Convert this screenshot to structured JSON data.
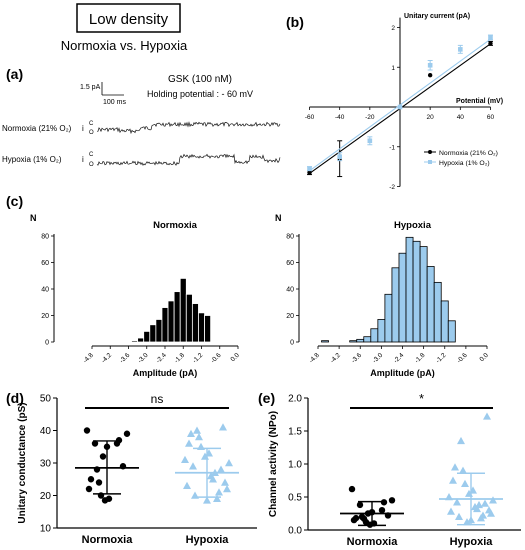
{
  "header": {
    "density_label": "Low density",
    "comparison_title": "Normoxia vs. Hypoxia"
  },
  "colors": {
    "normoxia": "#000000",
    "hypoxia": "#9ccbed",
    "hypoxia_dark": "#6aa8d8"
  },
  "panels": {
    "a": {
      "letter": "(a)",
      "scale_current": "1.5 pA",
      "scale_time": "100 ms",
      "drug_label": "GSK (100 nM)",
      "holding_label": "Holding potential : -  60 mV",
      "traces": [
        {
          "name": "Normoxia (21% O₂)",
          "i_label": "i",
          "closed_label": "C",
          "open_label": "O"
        },
        {
          "name": "Hypoxia (1% O₂)",
          "i_label": "i",
          "closed_label": "C",
          "open_label": "O"
        }
      ]
    },
    "b": {
      "letter": "(b)"
    },
    "c": {
      "letter": "(c)"
    },
    "d": {
      "letter": "(d)"
    },
    "e": {
      "letter": "(e)"
    }
  },
  "chart_data": [
    {
      "id": "b",
      "type": "scatter",
      "title": "",
      "xlabel": "Potential (mV)",
      "ylabel": "Unitary current (pA)",
      "xlim": [
        -60,
        60
      ],
      "ylim": [
        -2,
        2
      ],
      "xticks": [
        "-60",
        "-40",
        "-20",
        "20",
        "40",
        "60"
      ],
      "yticks": [
        "2",
        "1",
        "-1",
        "-2"
      ],
      "legend_position": "bottom-right",
      "series": [
        {
          "name": "Normoxia (21% O₂)",
          "x": [
            -60,
            -40,
            20,
            60
          ],
          "y": [
            -1.65,
            -1.3,
            0.8,
            1.6
          ],
          "err": [
            0.05,
            0.45,
            0.0,
            0.05
          ],
          "fit": {
            "slope": 0.02717,
            "intercept": -0.04
          }
        },
        {
          "name": "Hypoxia (1% O₂)",
          "x": [
            -60,
            -40,
            -20,
            0,
            20,
            40,
            60
          ],
          "y": [
            -1.55,
            -1.25,
            -0.85,
            0.0,
            1.05,
            1.45,
            1.75
          ],
          "err": [
            0.05,
            0.1,
            0.1,
            0.02,
            0.12,
            0.1,
            0.06
          ],
          "fit": {
            "slope": 0.02758,
            "intercept": 0.05
          }
        }
      ]
    },
    {
      "id": "c-normoxia",
      "type": "bar",
      "title": "Normoxia",
      "ylabel": "N",
      "xlabel": "Amplitude (pA)",
      "xlim": [
        -4.8,
        0.0
      ],
      "ylim": [
        0,
        80
      ],
      "yticks": [
        "0",
        "20",
        "40",
        "60",
        "80"
      ],
      "xticks": [
        "-4.8",
        "-4.2",
        "-3.6",
        "-3.0",
        "-2.4",
        "-1.8",
        "-1.2",
        "-0.6",
        "0.0"
      ],
      "bin_width": 0.2,
      "bins": [
        -3.4,
        -3.2,
        -3.0,
        -2.8,
        -2.6,
        -2.4,
        -2.2,
        -2.0,
        -1.8,
        -1.6,
        -1.4,
        -1.2,
        -1.0
      ],
      "values": [
        1,
        3,
        8,
        13,
        17,
        26,
        31,
        38,
        48,
        36,
        29,
        22,
        20
      ]
    },
    {
      "id": "c-hypoxia",
      "type": "bar",
      "title": "Hypoxia",
      "ylabel": "N",
      "xlabel": "Amplitude (pA)",
      "xlim": [
        -4.8,
        0.0
      ],
      "ylim": [
        0,
        80
      ],
      "yticks": [
        "0",
        "20",
        "40",
        "60",
        "80"
      ],
      "xticks": [
        "-4.8",
        "-4.2",
        "-3.6",
        "-3.0",
        "-2.4",
        "-1.8",
        "-1.2",
        "-0.6",
        "0.0"
      ],
      "bin_width": 0.2,
      "bins": [
        -4.6,
        -4.4,
        -4.2,
        -4.0,
        -3.8,
        -3.6,
        -3.4,
        -3.2,
        -3.0,
        -2.8,
        -2.6,
        -2.4,
        -2.2,
        -2.0,
        -1.8,
        -1.6,
        -1.4,
        -1.2,
        -1.0
      ],
      "values": [
        1,
        0,
        0,
        0,
        1,
        2,
        4,
        10,
        17,
        36,
        56,
        67,
        79,
        76,
        72,
        57,
        45,
        31,
        16
      ]
    },
    {
      "id": "d",
      "type": "scatter",
      "title": "",
      "ylabel": "Unitary conductance (pS)",
      "categories": [
        "Normoxia",
        "Hypoxia"
      ],
      "ylim": [
        10,
        50
      ],
      "yticks": [
        "10",
        "20",
        "30",
        "40",
        "50"
      ],
      "significance": "ns",
      "groups": [
        {
          "name": "Normoxia",
          "mean": 28.5,
          "sd_low": 20.5,
          "sd_high": 36.8,
          "values": [
            40,
            39,
            37,
            36,
            36,
            35,
            32,
            29,
            28,
            25,
            24,
            22,
            20,
            19,
            18.5
          ]
        },
        {
          "name": "Hypoxia",
          "mean": 27,
          "sd_low": 19.5,
          "sd_high": 34.5,
          "values": [
            41,
            40,
            39,
            38,
            36,
            35,
            33,
            32,
            31,
            30,
            29,
            28,
            27,
            26,
            25,
            24,
            23,
            22,
            21,
            20,
            19,
            18.5
          ]
        }
      ]
    },
    {
      "id": "e",
      "type": "scatter",
      "title": "",
      "ylabel": "Channel activity (NPo)",
      "categories": [
        "Normoxia",
        "Hypoxia"
      ],
      "ylim": [
        0,
        2
      ],
      "yticks": [
        "0.0",
        "0.5",
        "1.0",
        "1.5",
        "2.0"
      ],
      "significance": "*",
      "groups": [
        {
          "name": "Normoxia",
          "mean": 0.25,
          "sd_low": 0.07,
          "sd_high": 0.43,
          "values": [
            0.62,
            0.45,
            0.42,
            0.38,
            0.3,
            0.27,
            0.25,
            0.22,
            0.2,
            0.18,
            0.17,
            0.15,
            0.12,
            0.1,
            0.08
          ]
        },
        {
          "name": "Hypoxia",
          "mean": 0.47,
          "sd_low": 0.08,
          "sd_high": 0.86,
          "values": [
            1.72,
            1.35,
            0.95,
            0.9,
            0.75,
            0.7,
            0.6,
            0.55,
            0.5,
            0.45,
            0.42,
            0.4,
            0.38,
            0.35,
            0.32,
            0.3,
            0.28,
            0.25,
            0.22,
            0.2,
            0.18,
            0.15,
            0.12
          ]
        }
      ]
    }
  ]
}
